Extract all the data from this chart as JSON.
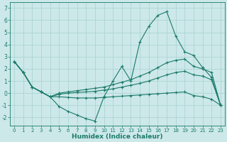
{
  "xlabel": "Humidex (Indice chaleur)",
  "bg_color": "#cce8e8",
  "line_color": "#1a7a6a",
  "grid_color": "#aed4d4",
  "xlim": [
    -0.5,
    23.5
  ],
  "ylim": [
    -2.7,
    7.5
  ],
  "xticks": [
    0,
    1,
    2,
    3,
    4,
    5,
    6,
    7,
    8,
    9,
    10,
    11,
    12,
    13,
    14,
    15,
    16,
    17,
    18,
    19,
    20,
    21,
    22,
    23
  ],
  "yticks": [
    -2,
    -1,
    0,
    1,
    2,
    3,
    4,
    5,
    6,
    7
  ],
  "curve1_x": [
    0,
    1,
    2,
    3,
    4,
    5,
    6,
    7,
    8,
    9,
    10,
    11,
    12,
    13,
    14,
    15,
    16,
    17,
    18,
    19,
    20,
    21,
    22,
    23
  ],
  "curve1_y": [
    2.6,
    1.7,
    0.5,
    0.1,
    -0.3,
    -1.1,
    -1.5,
    -1.8,
    -2.1,
    -2.3,
    -0.3,
    1.0,
    2.2,
    1.0,
    4.2,
    5.5,
    6.4,
    6.7,
    4.7,
    3.4,
    3.1,
    2.1,
    1.3,
    -1.0
  ],
  "line2_x": [
    0,
    1,
    2,
    3,
    4,
    5,
    6,
    7,
    8,
    9,
    10,
    11,
    12,
    13,
    14,
    15,
    16,
    17,
    18,
    19,
    20,
    21,
    22,
    23
  ],
  "line2_y": [
    2.6,
    1.7,
    0.5,
    0.1,
    -0.3,
    0.0,
    0.1,
    0.2,
    0.3,
    0.4,
    0.5,
    0.7,
    0.9,
    1.1,
    1.4,
    1.7,
    2.1,
    2.5,
    2.7,
    2.8,
    2.2,
    2.0,
    1.7,
    -1.0
  ],
  "line3_x": [
    0,
    1,
    2,
    3,
    4,
    5,
    6,
    7,
    8,
    9,
    10,
    11,
    12,
    13,
    14,
    15,
    16,
    17,
    18,
    19,
    20,
    21,
    22,
    23
  ],
  "line3_y": [
    2.6,
    1.7,
    0.5,
    0.1,
    -0.3,
    -0.1,
    0.0,
    0.05,
    0.1,
    0.15,
    0.25,
    0.35,
    0.5,
    0.65,
    0.8,
    1.0,
    1.25,
    1.5,
    1.7,
    1.8,
    1.5,
    1.4,
    1.1,
    -1.0
  ],
  "line4_x": [
    0,
    1,
    2,
    3,
    4,
    5,
    6,
    7,
    8,
    9,
    10,
    11,
    12,
    13,
    14,
    15,
    16,
    17,
    18,
    19,
    20,
    21,
    22,
    23
  ],
  "line4_y": [
    2.6,
    1.7,
    0.5,
    0.1,
    -0.3,
    -0.3,
    -0.35,
    -0.4,
    -0.4,
    -0.4,
    -0.35,
    -0.3,
    -0.25,
    -0.2,
    -0.15,
    -0.1,
    -0.05,
    0.0,
    0.05,
    0.1,
    -0.2,
    -0.3,
    -0.5,
    -1.0
  ]
}
